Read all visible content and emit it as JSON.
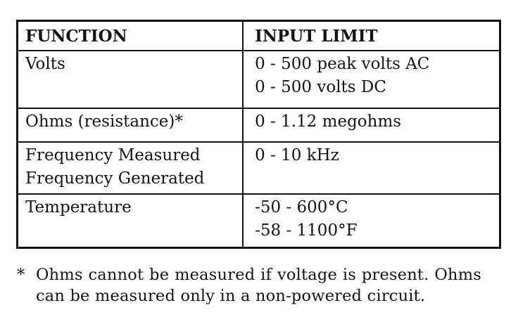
{
  "table": {
    "headers": {
      "function": "FUNCTION",
      "input_limit": "INPUT LIMIT"
    },
    "rows": [
      {
        "function": [
          "Volts"
        ],
        "input_limit": [
          "0 - 500 peak volts AC",
          "0 - 500 volts DC"
        ]
      },
      {
        "function": [
          "Ohms (resistance)*"
        ],
        "input_limit": [
          "0 - 1.12 megohms"
        ]
      },
      {
        "function": [
          "Frequency Measured",
          "Frequency Generated"
        ],
        "input_limit": [
          "0 - 10 kHz"
        ]
      },
      {
        "function": [
          "Temperature"
        ],
        "input_limit": [
          "-50 - 600°C",
          "-58 - 1100°F"
        ]
      }
    ]
  },
  "footnote": {
    "marker": "*",
    "text": "Ohms cannot be measured if voltage is present. Ohms can be measured only in a non-powered circuit."
  }
}
